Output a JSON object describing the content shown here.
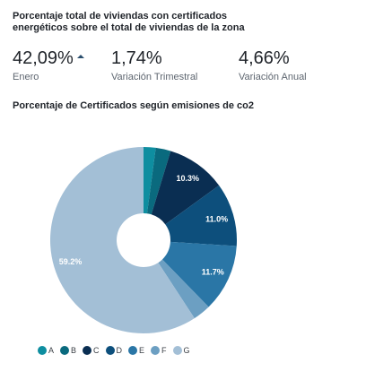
{
  "header": {
    "title": "Porcentaje total de viviendas con certificados energéticos sobre el total de viviendas de la zona"
  },
  "stats": [
    {
      "value": "42,09%",
      "label": "Enero",
      "trend": "up"
    },
    {
      "value": "1,74%",
      "label": "Variación Trimestral"
    },
    {
      "value": "4,66%",
      "label": "Variación Anual"
    }
  ],
  "chart_data": {
    "type": "pie",
    "style": "donut",
    "title": "Porcentaje de Certificados según emisiones de co2",
    "categories": [
      "A",
      "B",
      "C",
      "D",
      "E",
      "F",
      "G"
    ],
    "values": [
      2.1,
      2.6,
      10.3,
      11.0,
      11.7,
      3.1,
      59.2
    ],
    "data_labels": [
      "",
      "",
      "10.3%",
      "11.0%",
      "11.7%",
      "",
      "59.2%"
    ],
    "colors": [
      "#0e8ea0",
      "#0a6a7e",
      "#0a2e52",
      "#0d4f7c",
      "#2a76a6",
      "#6c9fc2",
      "#a3bfd6"
    ],
    "legend_position": "bottom"
  }
}
